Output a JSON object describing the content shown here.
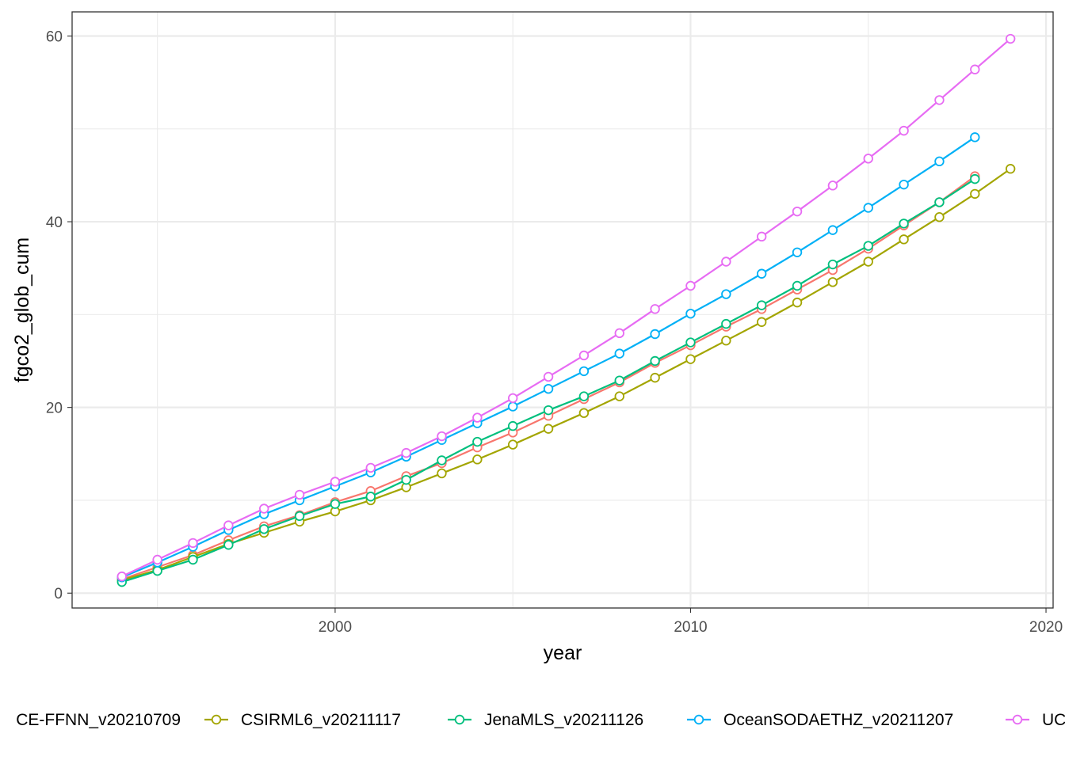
{
  "chart_data": {
    "type": "line",
    "title": "",
    "xlabel": "year",
    "ylabel": "fgco2_glob_cum",
    "xlim": [
      1992.6,
      2020.2
    ],
    "ylim": [
      -1.6,
      62.6
    ],
    "x_ticks": [
      2000,
      2010,
      2020
    ],
    "x_tick_labels": [
      "2000",
      "2010",
      "2020"
    ],
    "y_ticks": [
      0,
      20,
      40,
      60
    ],
    "y_tick_labels": [
      "0",
      "20",
      "40",
      "60"
    ],
    "grid": true,
    "legend_position": "bottom",
    "markers": "open circles",
    "series": [
      {
        "name": "CE-FFNN_v20210709",
        "color": "#F8766D",
        "x": [
          1994,
          1995,
          1996,
          1997,
          1998,
          1999,
          2000,
          2001,
          2002,
          2003,
          2004,
          2005,
          2006,
          2007,
          2008,
          2009,
          2010,
          2011,
          2012,
          2013,
          2014,
          2015,
          2016,
          2017,
          2018
        ],
        "y": [
          1.5,
          2.8,
          4.1,
          5.7,
          7.2,
          8.4,
          9.8,
          11.0,
          12.6,
          14.0,
          15.7,
          17.3,
          19.1,
          20.9,
          22.7,
          24.8,
          26.7,
          28.7,
          30.6,
          32.7,
          34.8,
          37.1,
          39.6,
          42.1,
          44.9
        ]
      },
      {
        "name": "CSIRML6_v20211117",
        "color": "#A3A500",
        "x": [
          1994,
          1995,
          1996,
          1997,
          1998,
          1999,
          2000,
          2001,
          2002,
          2003,
          2004,
          2005,
          2006,
          2007,
          2008,
          2009,
          2010,
          2011,
          2012,
          2013,
          2014,
          2015,
          2016,
          2017,
          2018,
          2019
        ],
        "y": [
          1.4,
          2.5,
          3.9,
          5.3,
          6.5,
          7.7,
          8.8,
          10.0,
          11.4,
          12.9,
          14.4,
          16.0,
          17.7,
          19.4,
          21.2,
          23.2,
          25.2,
          27.2,
          29.2,
          31.3,
          33.5,
          35.7,
          38.1,
          40.5,
          43.0,
          45.7
        ]
      },
      {
        "name": "JenaMLS_v20211126",
        "color": "#00BF7D",
        "x": [
          1994,
          1995,
          1996,
          1997,
          1998,
          1999,
          2000,
          2001,
          2002,
          2003,
          2004,
          2005,
          2006,
          2007,
          2008,
          2009,
          2010,
          2011,
          2012,
          2013,
          2014,
          2015,
          2016,
          2017,
          2018
        ],
        "y": [
          1.2,
          2.4,
          3.6,
          5.2,
          6.9,
          8.3,
          9.6,
          10.4,
          12.2,
          14.3,
          16.3,
          18.0,
          19.7,
          21.2,
          22.9,
          25.0,
          27.0,
          29.0,
          31.0,
          33.1,
          35.4,
          37.4,
          39.8,
          42.1,
          44.6
        ]
      },
      {
        "name": "OceanSODAETHZ_v20211207",
        "color": "#00B0F6",
        "x": [
          1994,
          1995,
          1996,
          1997,
          1998,
          1999,
          2000,
          2001,
          2002,
          2003,
          2004,
          2005,
          2006,
          2007,
          2008,
          2009,
          2010,
          2011,
          2012,
          2013,
          2014,
          2015,
          2016,
          2017,
          2018
        ],
        "y": [
          1.7,
          3.3,
          5.0,
          6.8,
          8.5,
          10.0,
          11.5,
          13.0,
          14.7,
          16.5,
          18.3,
          20.1,
          22.0,
          23.9,
          25.8,
          27.9,
          30.1,
          32.2,
          34.4,
          36.7,
          39.1,
          41.5,
          44.0,
          46.5,
          49.1
        ]
      },
      {
        "name": "UC",
        "color": "#E76BF3",
        "x": [
          1994,
          1995,
          1996,
          1997,
          1998,
          1999,
          2000,
          2001,
          2002,
          2003,
          2004,
          2005,
          2006,
          2007,
          2008,
          2009,
          2010,
          2011,
          2012,
          2013,
          2014,
          2015,
          2016,
          2017,
          2018,
          2019
        ],
        "y": [
          1.8,
          3.6,
          5.4,
          7.3,
          9.1,
          10.6,
          12.0,
          13.5,
          15.1,
          16.9,
          18.9,
          21.0,
          23.3,
          25.6,
          28.0,
          30.6,
          33.1,
          35.7,
          38.4,
          41.1,
          43.9,
          46.8,
          49.8,
          53.1,
          56.4,
          59.7
        ]
      }
    ]
  }
}
